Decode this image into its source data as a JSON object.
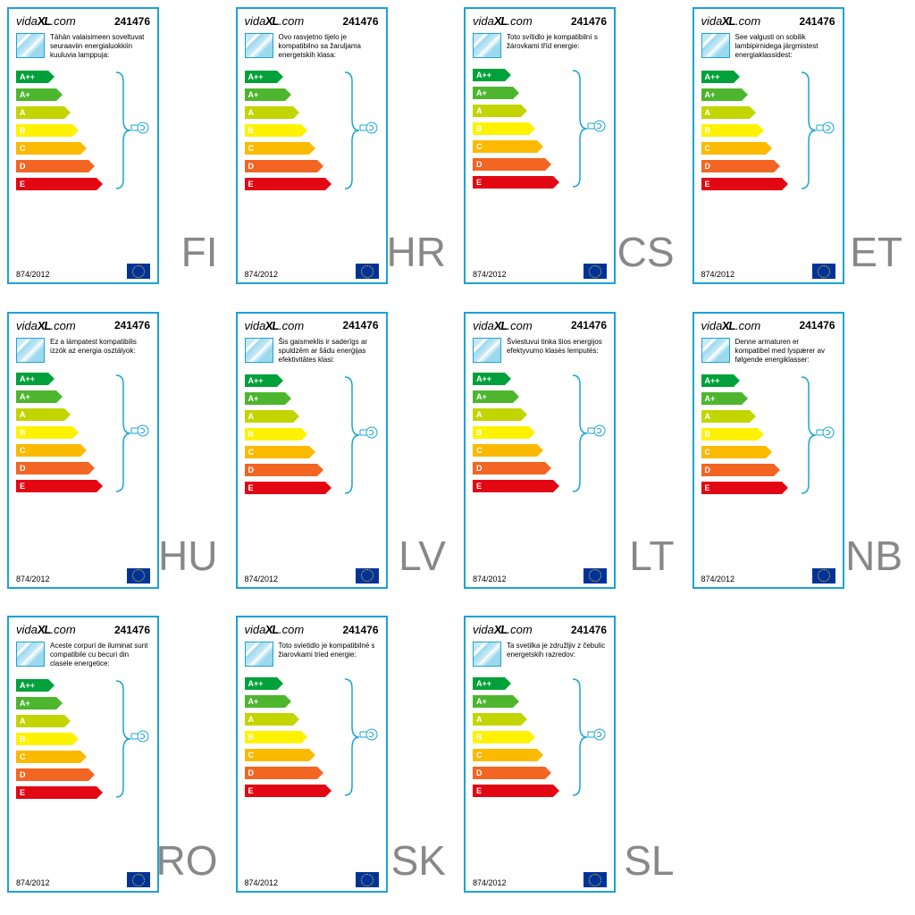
{
  "brand": "vidaXL.com",
  "product_number": "241476",
  "regulation": "874/2012",
  "energy_classes": [
    {
      "label": "A++",
      "color": "#00a13a",
      "width_pct": 24
    },
    {
      "label": "A+",
      "color": "#4db62e",
      "width_pct": 30
    },
    {
      "label": "A",
      "color": "#c2d500",
      "width_pct": 36
    },
    {
      "label": "B",
      "color": "#fff200",
      "width_pct": 42
    },
    {
      "label": "C",
      "color": "#fbba00",
      "width_pct": 48
    },
    {
      "label": "D",
      "color": "#f26522",
      "width_pct": 54
    },
    {
      "label": "E",
      "color": "#e30613",
      "width_pct": 60
    }
  ],
  "labels": [
    {
      "lang": "FI",
      "text": "Tähän valaisimeen soveltuvat seuraaviin energialuokkiin kuuluvia lamppuja:"
    },
    {
      "lang": "HR",
      "text": "Ovo rasvjetno tijelo je kompatibilno sa žaruljama energetskih klasa:"
    },
    {
      "lang": "CS",
      "text": "Toto svítidlo je kompatibilní s žárovkami tříd energie:"
    },
    {
      "lang": "ET",
      "text": "See valgusti on sobilik lambipirnidega järgmistest energiaklassidest:"
    },
    {
      "lang": "HU",
      "text": "Ez a lámpatest kompatibilis izzók az energia osztályok:"
    },
    {
      "lang": "LV",
      "text": "Šis gaismeklis ir saderīgs ar spuldzēm ar šādu enerģijas efektivitātes klasi:"
    },
    {
      "lang": "LT",
      "text": "Šviestuvui tinka šios energijos efektyvumo klasės lemputės:"
    },
    {
      "lang": "NB",
      "text": "Denne armaturen er kompatibel med lyspærer av følgende energiklasser:"
    },
    {
      "lang": "RO",
      "text": "Aceste corpuri de iluminat sunt compatibile cu becuri din clasele energetice:"
    },
    {
      "lang": "SK",
      "text": "Toto svietidlo je kompatibilné s žiarovkami tried energie:"
    },
    {
      "lang": "SL",
      "text": "Ta svetilka je združljiv z čebulic energetskih razredov:"
    }
  ],
  "bracket_color": "#1aa3d6",
  "bulb_stroke": "#1aa3d6"
}
